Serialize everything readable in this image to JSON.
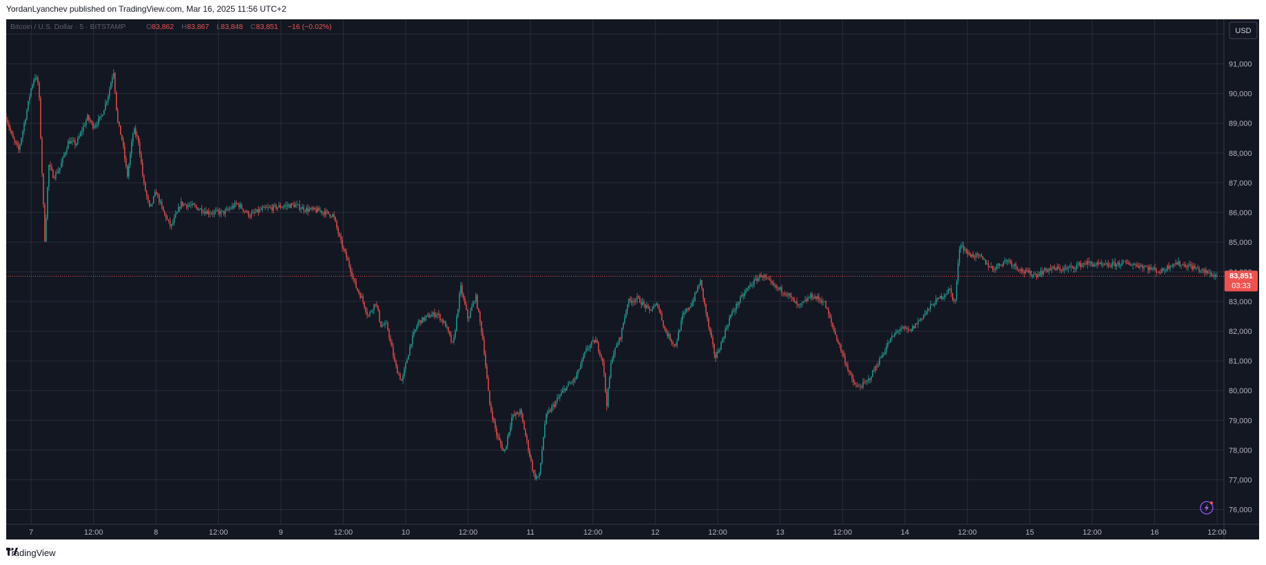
{
  "header": {
    "publisher_line": "YordanLyanchev published on TradingView.com, Mar 16, 2025 11:56 UTC+2"
  },
  "footer": {
    "brand": "TradingView"
  },
  "colors": {
    "background": "#131722",
    "grid": "#2a2e39",
    "up": "#26a69a",
    "down": "#ef5350",
    "axis_text": "#b2b5be"
  },
  "icons": [
    "tradingview-logo-icon",
    "lightning-icon"
  ],
  "chart_data": {
    "type": "candlestick",
    "symbol": "Bitcoin / U.S. Dollar · 5 · BITSTAMP",
    "ohlc": {
      "o_label": "O",
      "o": "83,862",
      "h_label": "H",
      "h": "83,867",
      "l_label": "L",
      "l": "83,848",
      "c_label": "C",
      "c": "83,851",
      "change": "−16 (−0.02%)"
    },
    "currency": "USD",
    "last_price_label": "83,851",
    "countdown": "03:33",
    "last_price": 83851,
    "ylim": [
      75500,
      92500
    ],
    "y_ticks": [
      76000,
      77000,
      78000,
      79000,
      80000,
      81000,
      82000,
      83000,
      84000,
      85000,
      86000,
      87000,
      88000,
      89000,
      90000,
      91000,
      92000
    ],
    "y_tick_labels": [
      "76,000",
      "77,000",
      "78,000",
      "79,000",
      "80,000",
      "81,000",
      "82,000",
      "83,000",
      "84,000",
      "85,000",
      "86,000",
      "87,000",
      "88,000",
      "89,000",
      "90,000",
      "91,000",
      "92,000"
    ],
    "x_range": [
      6.8,
      16.5
    ],
    "x_ticks": [
      7,
      7.5,
      8,
      8.5,
      9,
      9.5,
      10,
      10.5,
      11,
      11.5,
      12,
      12.5,
      13,
      13.5,
      14,
      14.5,
      15,
      15.5,
      16,
      16.5
    ],
    "x_tick_labels": [
      "7",
      "12:00",
      "8",
      "12:00",
      "9",
      "12:00",
      "10",
      "12:00",
      "11",
      "12:00",
      "12",
      "12:00",
      "13",
      "12:00",
      "14",
      "12:00",
      "15",
      "12:00",
      "16",
      "12:00"
    ],
    "price_path": [
      [
        6.8,
        89200
      ],
      [
        6.85,
        88500
      ],
      [
        6.9,
        88100
      ],
      [
        6.95,
        89100
      ],
      [
        7.0,
        90200
      ],
      [
        7.03,
        90600
      ],
      [
        7.06,
        90300
      ],
      [
        7.09,
        87000
      ],
      [
        7.11,
        85000
      ],
      [
        7.14,
        87600
      ],
      [
        7.18,
        87200
      ],
      [
        7.23,
        87500
      ],
      [
        7.3,
        88400
      ],
      [
        7.36,
        88300
      ],
      [
        7.45,
        89200
      ],
      [
        7.5,
        88900
      ],
      [
        7.56,
        89200
      ],
      [
        7.62,
        90000
      ],
      [
        7.66,
        90800
      ],
      [
        7.69,
        89100
      ],
      [
        7.73,
        88400
      ],
      [
        7.77,
        87200
      ],
      [
        7.82,
        88800
      ],
      [
        7.86,
        88400
      ],
      [
        7.9,
        87000
      ],
      [
        7.95,
        86100
      ],
      [
        8.0,
        86700
      ],
      [
        8.06,
        86000
      ],
      [
        8.12,
        85500
      ],
      [
        8.2,
        86300
      ],
      [
        8.3,
        86200
      ],
      [
        8.42,
        86000
      ],
      [
        8.55,
        86000
      ],
      [
        8.65,
        86300
      ],
      [
        8.75,
        85900
      ],
      [
        8.85,
        86100
      ],
      [
        9.0,
        86200
      ],
      [
        9.1,
        86250
      ],
      [
        9.2,
        86100
      ],
      [
        9.32,
        86050
      ],
      [
        9.42,
        85900
      ],
      [
        9.48,
        85000
      ],
      [
        9.55,
        84200
      ],
      [
        9.6,
        83500
      ],
      [
        9.65,
        83100
      ],
      [
        9.7,
        82500
      ],
      [
        9.76,
        83000
      ],
      [
        9.8,
        82200
      ],
      [
        9.85,
        82200
      ],
      [
        9.92,
        80800
      ],
      [
        9.97,
        80300
      ],
      [
        10.04,
        81600
      ],
      [
        10.1,
        82300
      ],
      [
        10.18,
        82500
      ],
      [
        10.25,
        82600
      ],
      [
        10.32,
        82200
      ],
      [
        10.38,
        81500
      ],
      [
        10.44,
        83500
      ],
      [
        10.5,
        82400
      ],
      [
        10.56,
        83200
      ],
      [
        10.62,
        81700
      ],
      [
        10.67,
        79600
      ],
      [
        10.73,
        78500
      ],
      [
        10.79,
        77900
      ],
      [
        10.85,
        79100
      ],
      [
        10.92,
        79300
      ],
      [
        10.97,
        78300
      ],
      [
        11.03,
        77100
      ],
      [
        11.07,
        77100
      ],
      [
        11.12,
        79100
      ],
      [
        11.2,
        79600
      ],
      [
        11.28,
        80100
      ],
      [
        11.36,
        80400
      ],
      [
        11.45,
        81400
      ],
      [
        11.52,
        81700
      ],
      [
        11.58,
        81000
      ],
      [
        11.61,
        79500
      ],
      [
        11.65,
        81100
      ],
      [
        11.72,
        81800
      ],
      [
        11.78,
        83000
      ],
      [
        11.86,
        83100
      ],
      [
        11.95,
        82700
      ],
      [
        12.02,
        82900
      ],
      [
        12.08,
        82000
      ],
      [
        12.16,
        81500
      ],
      [
        12.22,
        82500
      ],
      [
        12.3,
        83000
      ],
      [
        12.36,
        83700
      ],
      [
        12.42,
        82300
      ],
      [
        12.48,
        81100
      ],
      [
        12.52,
        81500
      ],
      [
        12.6,
        82500
      ],
      [
        12.67,
        83000
      ],
      [
        12.75,
        83500
      ],
      [
        12.85,
        83900
      ],
      [
        12.95,
        83500
      ],
      [
        13.05,
        83300
      ],
      [
        13.15,
        82800
      ],
      [
        13.25,
        83200
      ],
      [
        13.35,
        83000
      ],
      [
        13.45,
        81800
      ],
      [
        13.52,
        81000
      ],
      [
        13.58,
        80300
      ],
      [
        13.62,
        80100
      ],
      [
        13.7,
        80300
      ],
      [
        13.78,
        80900
      ],
      [
        13.88,
        81700
      ],
      [
        13.96,
        82100
      ],
      [
        14.04,
        82000
      ],
      [
        14.12,
        82400
      ],
      [
        14.22,
        82900
      ],
      [
        14.3,
        83200
      ],
      [
        14.36,
        83400
      ],
      [
        14.4,
        82900
      ],
      [
        14.44,
        85000
      ],
      [
        14.5,
        84600
      ],
      [
        14.6,
        84500
      ],
      [
        14.7,
        84100
      ],
      [
        14.82,
        84400
      ],
      [
        14.95,
        84000
      ],
      [
        15.05,
        83900
      ],
      [
        15.15,
        84100
      ],
      [
        15.3,
        84100
      ],
      [
        15.45,
        84300
      ],
      [
        15.6,
        84200
      ],
      [
        15.75,
        84300
      ],
      [
        15.9,
        84200
      ],
      [
        16.05,
        84000
      ],
      [
        16.15,
        84300
      ],
      [
        16.28,
        84200
      ],
      [
        16.4,
        84000
      ],
      [
        16.5,
        83851
      ]
    ]
  }
}
